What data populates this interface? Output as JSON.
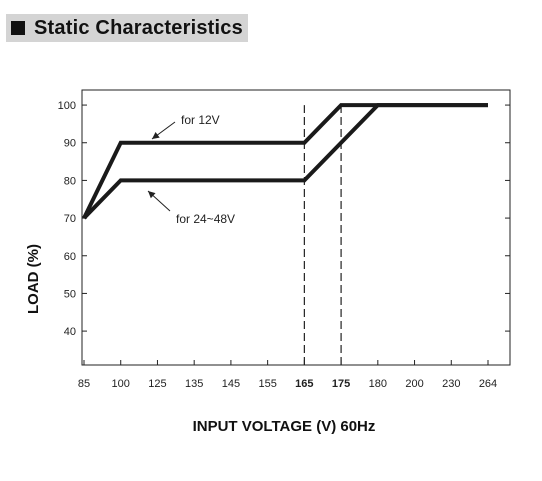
{
  "header": {
    "title": "Static Characteristics"
  },
  "chart_data": {
    "type": "line",
    "title": "",
    "xlabel": "INPUT VOLTAGE (V) 60Hz",
    "ylabel": "LOAD (%)",
    "x_ticks": [
      "85",
      "100",
      "125",
      "135",
      "145",
      "155",
      "165",
      "175",
      "180",
      "200",
      "230",
      "264"
    ],
    "y_ticks": [
      40,
      50,
      60,
      70,
      80,
      90,
      100
    ],
    "ylim": [
      31,
      104
    ],
    "highlighted_x_ticks": [
      "165",
      "175"
    ],
    "series": [
      {
        "name": "for 12V",
        "x": [
          "85",
          "100",
          "165",
          "175",
          "264"
        ],
        "y": [
          70,
          90,
          90,
          100,
          100
        ]
      },
      {
        "name": "for 24~48V",
        "x": [
          "85",
          "100",
          "165",
          "180",
          "264"
        ],
        "y": [
          70,
          80,
          80,
          100,
          100
        ]
      }
    ],
    "reference_lines_x": [
      "165",
      "175"
    ],
    "grid": false,
    "line_color": "#1a1a1a"
  }
}
